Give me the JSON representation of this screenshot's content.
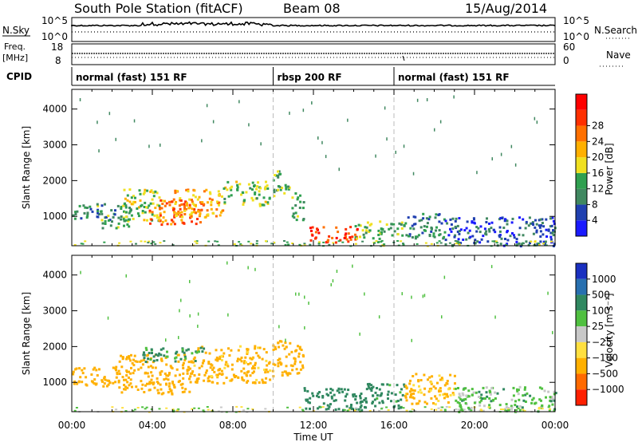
{
  "header": {
    "station": "South Pole Station (fitACF)",
    "beam": "Beam 08",
    "date": "15/Aug/2014"
  },
  "panels": {
    "nsky_label": "N.Sky",
    "nsearch_label": "N.Search",
    "noise_tick_high": "10^5",
    "noise_tick_low": "10^0",
    "freq_label_1": "Freq.",
    "freq_label_2": "[MHz]",
    "freq_ticks": [
      "18",
      "8"
    ],
    "nave_label": "Nave",
    "nave_ticks": [
      "60",
      "0"
    ],
    "cpid_label": "CPID",
    "cpid_segments": [
      {
        "label": "normal (fast) 151 RF",
        "start_hour": 0,
        "end_hour": 10
      },
      {
        "label": "rbsp 200 RF",
        "start_hour": 10,
        "end_hour": 16
      },
      {
        "label": "normal (fast) 151 RF",
        "start_hour": 16,
        "end_hour": 24
      }
    ]
  },
  "chart_data": [
    {
      "type": "heatmap",
      "name": "power",
      "ylabel": "Slant Range [km]",
      "xlabel": "",
      "xlim": [
        0,
        24
      ],
      "ylim": [
        180,
        4550
      ],
      "yticks": [
        1000,
        2000,
        3000,
        4000
      ],
      "colorbar_label": "Power [dB]",
      "colorbar_ticks": [
        "4",
        "8",
        "12",
        "16",
        "20",
        "24",
        "28"
      ],
      "colorbar_levels": [
        0,
        4,
        8,
        12,
        16,
        20,
        24,
        28,
        32
      ],
      "colorbar_colors": [
        "#1a1aff",
        "#2040b0",
        "#408860",
        "#30a050",
        "#f0e020",
        "#ffb000",
        "#ff7000",
        "#ff3000",
        "#ff0000"
      ],
      "regions": [
        {
          "hours": [
            0,
            1.5
          ],
          "ranges": [
            950,
            1350
          ],
          "level": 10
        },
        {
          "hours": [
            1.2,
            3.0
          ],
          "ranges": [
            700,
            1400
          ],
          "level": 12
        },
        {
          "hours": [
            2.5,
            4.5
          ],
          "ranges": [
            900,
            1800
          ],
          "level": 17
        },
        {
          "hours": [
            3.8,
            6.5
          ],
          "ranges": [
            800,
            1500
          ],
          "level": 27
        },
        {
          "hours": [
            5.0,
            7.5
          ],
          "ranges": [
            1000,
            1800
          ],
          "level": 22
        },
        {
          "hours": [
            7.5,
            9.8
          ],
          "ranges": [
            1300,
            2000
          ],
          "level": 16
        },
        {
          "hours": [
            9.9,
            10.8
          ],
          "ranges": [
            1600,
            2300
          ],
          "level": 14
        },
        {
          "hours": [
            10.9,
            11.5
          ],
          "ranges": [
            900,
            1700
          ],
          "level": 12
        },
        {
          "hours": [
            11.8,
            14.2
          ],
          "ranges": [
            300,
            750
          ],
          "level": 29
        },
        {
          "hours": [
            14.0,
            16.5
          ],
          "ranges": [
            400,
            900
          ],
          "level": 14
        },
        {
          "hours": [
            16.5,
            18.5
          ],
          "ranges": [
            400,
            1100
          ],
          "level": 10
        },
        {
          "hours": [
            18.5,
            24
          ],
          "ranges": [
            200,
            1000
          ],
          "level": 6
        }
      ]
    },
    {
      "type": "heatmap",
      "name": "velocity",
      "ylabel": "Slant Range [km]",
      "xlabel": "Time UT",
      "xlim": [
        0,
        24
      ],
      "xticks": [
        "00:00",
        "04:00",
        "08:00",
        "12:00",
        "16:00",
        "20:00",
        "00:00"
      ],
      "ylim": [
        180,
        4550
      ],
      "yticks": [
        1000,
        2000,
        3000,
        4000
      ],
      "colorbar_label": "Velocity [m s⁻¹]",
      "colorbar_ticks": [
        "1000",
        "500",
        "100",
        "25",
        "−25",
        "−100",
        "−500",
        "−1000"
      ],
      "colorbar_colors": [
        "#1a30c0",
        "#2870b0",
        "#308860",
        "#50c040",
        "#c8c8c8",
        "#ffe040",
        "#ffb000",
        "#ff6a00",
        "#ff2000"
      ],
      "regions": [
        {
          "hours": [
            0,
            2.0
          ],
          "ranges": [
            900,
            1450
          ],
          "level": -300
        },
        {
          "hours": [
            2.0,
            6.0
          ],
          "ranges": [
            700,
            1800
          ],
          "level": -250
        },
        {
          "hours": [
            6.0,
            9.8
          ],
          "ranges": [
            1000,
            2050
          ],
          "level": -200
        },
        {
          "hours": [
            3.5,
            6.5
          ],
          "ranges": [
            1600,
            2000
          ],
          "level": 150
        },
        {
          "hours": [
            9.9,
            11.5
          ],
          "ranges": [
            1200,
            2200
          ],
          "level": -250
        },
        {
          "hours": [
            11.5,
            14.5
          ],
          "ranges": [
            250,
            900
          ],
          "level": 300
        },
        {
          "hours": [
            14.5,
            16.5
          ],
          "ranges": [
            300,
            1000
          ],
          "level": 200
        },
        {
          "hours": [
            16.5,
            19.0
          ],
          "ranges": [
            400,
            1300
          ],
          "level": -150
        },
        {
          "hours": [
            19.0,
            24
          ],
          "ranges": [
            200,
            900
          ],
          "level": 60
        }
      ]
    }
  ]
}
